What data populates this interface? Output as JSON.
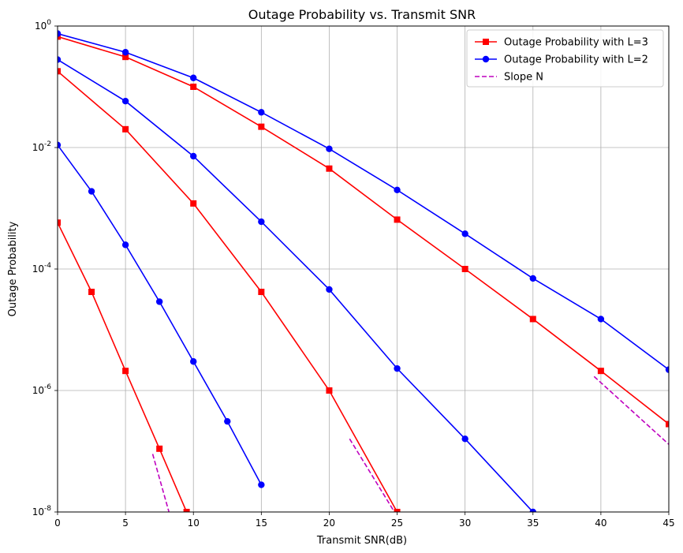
{
  "chart_data": {
    "type": "line",
    "title": "Outage Probability vs. Transmit SNR",
    "xlabel": "Transmit SNR(dB)",
    "ylabel": "Outage Probability",
    "xlim": [
      0,
      45
    ],
    "ylim": [
      1e-08,
      1
    ],
    "yscale": "log",
    "grid": true,
    "legend_position": "top-right",
    "x_ticks": [
      0,
      5,
      10,
      15,
      20,
      25,
      30,
      35,
      40,
      45
    ],
    "x_tick_labels": [
      "0",
      "5",
      "10",
      "15",
      "20",
      "25",
      "30",
      "35",
      "40",
      "45"
    ],
    "y_ticks": [
      1e-08,
      1e-06,
      0.0001,
      0.01,
      1
    ],
    "y_tick_labels": [
      {
        "base": "10",
        "exp": "-8"
      },
      {
        "base": "10",
        "exp": "-6"
      },
      {
        "base": "10",
        "exp": "-4"
      },
      {
        "base": "10",
        "exp": "-2"
      },
      {
        "base": "10",
        "exp": "0"
      }
    ],
    "legend": [
      {
        "label": "Outage Probability with L=3",
        "color": "#ff0000",
        "style": "solid",
        "marker": "square"
      },
      {
        "label": "Outage Probability with L=2",
        "color": "#0000ff",
        "style": "solid",
        "marker": "circle"
      },
      {
        "label": "Slope N",
        "color": "#bf00bf",
        "style": "dashed",
        "marker": "none"
      }
    ],
    "series": [
      {
        "group": "L=3",
        "color": "#ff0000",
        "marker": "square",
        "x": [
          0,
          5,
          10,
          15,
          20,
          25,
          30,
          35,
          40,
          45
        ],
        "y": [
          0.67,
          0.31,
          0.1,
          0.022,
          0.0045,
          0.00065,
          0.0001,
          1.5e-05,
          2.1e-06,
          2.8e-07
        ]
      },
      {
        "group": "L=3",
        "color": "#ff0000",
        "marker": "square",
        "x": [
          0,
          5,
          10,
          15,
          20,
          25
        ],
        "y": [
          0.18,
          0.02,
          0.0012,
          4.2e-05,
          1e-06,
          1e-08
        ]
      },
      {
        "group": "L=3",
        "color": "#ff0000",
        "marker": "square",
        "x": [
          0,
          2.5,
          5,
          7.5,
          9.5
        ],
        "y": [
          0.00058,
          4.2e-05,
          2.1e-06,
          1.1e-07,
          1e-08
        ]
      },
      {
        "group": "L=2",
        "color": "#0000ff",
        "marker": "circle",
        "x": [
          0,
          5,
          10,
          15,
          20,
          25,
          30,
          35,
          40,
          45
        ],
        "y": [
          0.75,
          0.37,
          0.14,
          0.038,
          0.0095,
          0.002,
          0.00038,
          7e-05,
          1.5e-05,
          2.2e-06
        ]
      },
      {
        "group": "L=2",
        "color": "#0000ff",
        "marker": "circle",
        "x": [
          0,
          5,
          10,
          15,
          20,
          25,
          30,
          35
        ],
        "y": [
          0.28,
          0.058,
          0.0072,
          0.0006,
          4.6e-05,
          2.3e-06,
          1.6e-07,
          1e-08
        ]
      },
      {
        "group": "L=2",
        "color": "#0000ff",
        "marker": "circle",
        "x": [
          0,
          2.5,
          5,
          7.5,
          10,
          12.5,
          15
        ],
        "y": [
          0.011,
          0.0019,
          0.00025,
          2.9e-05,
          3e-06,
          3.1e-07,
          2.8e-08
        ]
      }
    ],
    "slope_lines": [
      {
        "x": [
          7.0,
          8.2
        ],
        "y": [
          9e-08,
          1e-08
        ]
      },
      {
        "x": [
          21.5,
          24.8
        ],
        "y": [
          1.6e-07,
          1e-08
        ]
      },
      {
        "x": [
          39.5,
          45
        ],
        "y": [
          1.7e-06,
          1.3e-07
        ]
      }
    ]
  }
}
